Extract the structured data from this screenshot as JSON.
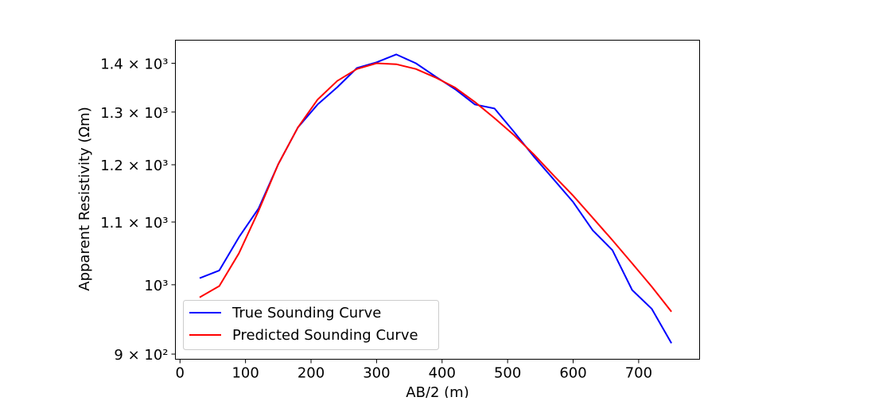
{
  "chart_data": {
    "type": "line",
    "title": "",
    "xlabel": "AB/2 (m)",
    "ylabel": "Apparent Resistivity (Ωm)",
    "xlim": [
      -7,
      793
    ],
    "ylim": [
      893,
      1450
    ],
    "yscale": "log",
    "grid": false,
    "legend_position": "lower-left",
    "xticks": [
      0,
      100,
      200,
      300,
      400,
      500,
      600,
      700
    ],
    "xtick_labels": [
      "0",
      "100",
      "200",
      "300",
      "400",
      "500",
      "600",
      "700"
    ],
    "yticks": [
      900,
      1000,
      1100,
      1200,
      1300,
      1400
    ],
    "ytick_labels": [
      "9 × 10²",
      "10³",
      "1.1 × 10³",
      "1.2 × 10³",
      "1.3 × 10³",
      "1.4 × 10³"
    ],
    "x": [
      30,
      60,
      90,
      120,
      150,
      180,
      210,
      240,
      270,
      300,
      330,
      360,
      390,
      420,
      450,
      480,
      510,
      540,
      570,
      600,
      630,
      660,
      690,
      720,
      750
    ],
    "series": [
      {
        "name": "True Sounding Curve",
        "color": "#0000ff",
        "values": [
          1010,
          1022,
          1075,
          1123,
          1201,
          1270,
          1315,
          1350,
          1390,
          1402,
          1419,
          1400,
          1372,
          1346,
          1315,
          1307,
          1261,
          1215,
          1174,
          1134,
          1086,
          1054,
          992,
          964,
          915
        ]
      },
      {
        "name": "Predicted Sounding Curve",
        "color": "#ff0000",
        "values": [
          981,
          998,
          1049,
          1119,
          1201,
          1270,
          1325,
          1363,
          1388,
          1400,
          1398,
          1388,
          1370,
          1349,
          1320,
          1288,
          1255,
          1219,
          1181,
          1145,
          1107,
          1070,
          1033,
          997,
          960
        ]
      }
    ]
  }
}
